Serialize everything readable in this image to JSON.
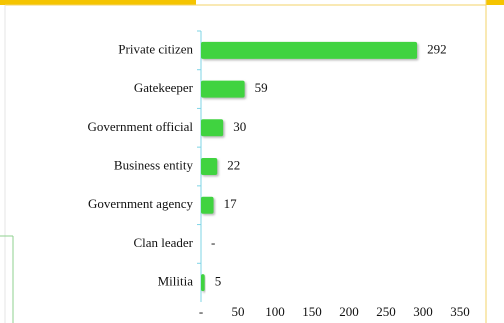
{
  "chart_data": {
    "type": "bar",
    "orientation": "horizontal",
    "categories": [
      "Private citizen",
      "Gatekeeper",
      "Government official",
      "Business entity",
      "Government agency",
      "Clan leader",
      "Militia"
    ],
    "values": [
      292,
      59,
      30,
      22,
      17,
      0,
      5
    ],
    "value_labels": [
      "292",
      "59",
      "30",
      "22",
      "17",
      "-",
      "5"
    ],
    "color": "#3fd33f",
    "xlim": [
      0,
      350
    ],
    "xticks": [
      {
        "value": 0,
        "label": "-"
      },
      50,
      100,
      150,
      200,
      250,
      300,
      350
    ],
    "grid": false
  }
}
